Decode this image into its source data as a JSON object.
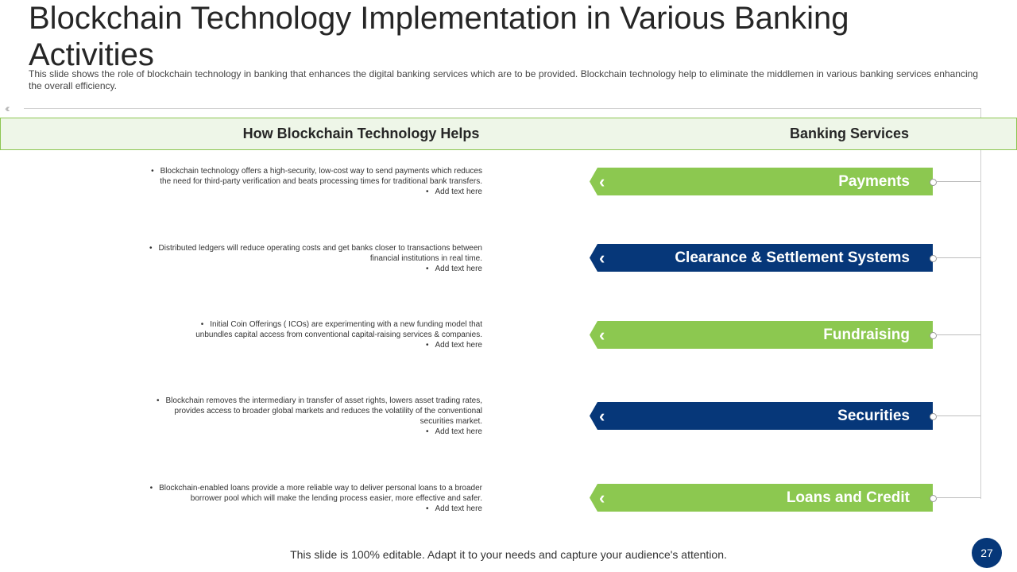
{
  "title": "Blockchain Technology Implementation in Various Banking Activities",
  "subtitle": "This slide shows the role of blockchain technology in banking that enhances the digital banking services which are to be provided.  Blockchain technology help to eliminate the middlemen in various  banking services enhancing the overall  efficiency.",
  "header": {
    "left": "How Blockchain Technology Helps",
    "right": "Banking Services"
  },
  "bullet_symbol": "•",
  "rows": [
    {
      "desc": [
        "Blockchain technology offers a high-security, low-cost way to send payments which reduces",
        "the need for third-party verification and beats processing times for traditional bank transfers."
      ],
      "add": "Add text here",
      "service": "Payments",
      "color": "#8cc850"
    },
    {
      "desc": [
        "Distributed ledgers will reduce operating costs and get banks closer to transactions between",
        "financial institutions in real time."
      ],
      "add": "Add text here",
      "service": "Clearance & Settlement Systems",
      "color": "#063779"
    },
    {
      "desc": [
        "Initial Coin Offerings ( ICOs) are experimenting  with a new funding model that",
        "unbundles capital access from conventional capital-raising services & companies."
      ],
      "add": "Add text here",
      "service": "Fundraising",
      "color": "#8cc850"
    },
    {
      "desc": [
        "Blockchain removes the intermediary in transfer of asset rights, lowers asset trading rates,",
        "provides access to broader global markets and reduces the volatility of the conventional",
        "securities market."
      ],
      "add": "Add text here",
      "service": "Securities",
      "color": "#063779"
    },
    {
      "desc": [
        "Blockchain-enabled loans provide a more reliable way to deliver personal loans to a broader",
        "borrower pool which will make the lending process easier, more effective and safer."
      ],
      "add": "Add text here",
      "service": "Loans and Credit",
      "color": "#8cc850"
    }
  ],
  "arrow_glyph": "‹",
  "footer": "This slide is 100% editable. Adapt it to your needs and capture your audience's attention.",
  "page_number": "27"
}
